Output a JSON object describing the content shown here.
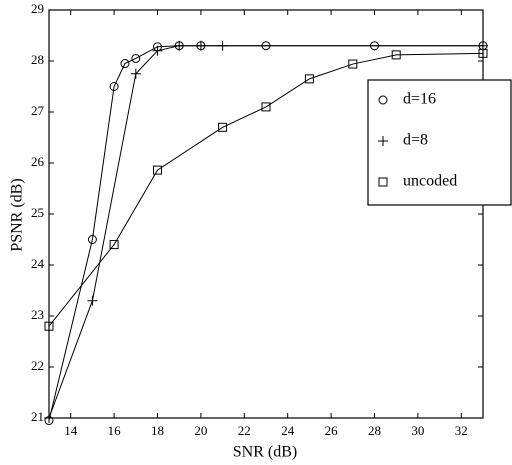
{
  "chart_data": {
    "type": "line",
    "xlabel": "SNR (dB)",
    "ylabel": "PSNR (dB)",
    "xlim": [
      13,
      33
    ],
    "xticks": [
      14,
      16,
      18,
      20,
      22,
      24,
      26,
      28,
      30,
      32
    ],
    "ylim": [
      21,
      29
    ],
    "yticks": [
      21,
      22,
      23,
      24,
      25,
      26,
      27,
      28,
      29
    ],
    "legend": "upper right",
    "grid": false,
    "series": [
      {
        "name": "d=16",
        "color": "#000000",
        "marker": "circle",
        "x": [
          13,
          15,
          16,
          16.5,
          17,
          18,
          19,
          20,
          23,
          28,
          33
        ],
        "values": [
          20.95,
          24.5,
          27.5,
          27.95,
          28.05,
          28.28,
          28.3,
          28.3,
          28.3,
          28.3,
          28.3
        ]
      },
      {
        "name": "d=8",
        "color": "#000000",
        "marker": "plus",
        "x": [
          13,
          15,
          17,
          18,
          19,
          20,
          21,
          33
        ],
        "values": [
          21,
          23.3,
          27.75,
          28.2,
          28.3,
          28.3,
          28.3,
          28.3
        ]
      },
      {
        "name": "uncoded",
        "color": "#000000",
        "marker": "square",
        "x": [
          13,
          16,
          18,
          21,
          23,
          25,
          27,
          29,
          33
        ],
        "values": [
          22.8,
          24.4,
          25.86,
          26.7,
          27.1,
          27.65,
          27.94,
          28.12,
          28.15
        ]
      }
    ]
  }
}
